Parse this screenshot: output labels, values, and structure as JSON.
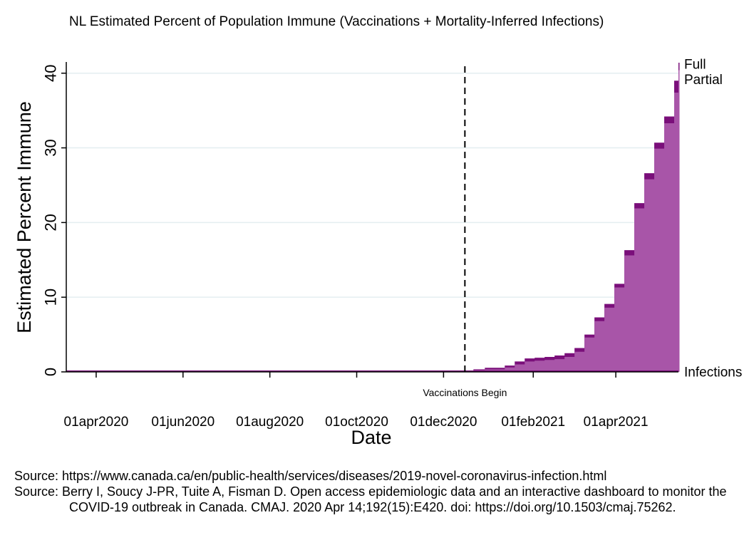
{
  "chart_data": {
    "type": "area",
    "title": "NL Estimated Percent of Population Immune (Vaccinations + Mortality-Inferred Infections)",
    "xlabel": "Date",
    "ylabel": "Estimated Percent Immune",
    "ylim": [
      0,
      41.5
    ],
    "yticks": [
      0,
      10,
      20,
      30,
      40
    ],
    "xticks": [
      {
        "label": "01apr2020",
        "day": 0
      },
      {
        "label": "01jun2020",
        "day": 61
      },
      {
        "label": "01aug2020",
        "day": 122
      },
      {
        "label": "01oct2020",
        "day": 183
      },
      {
        "label": "01dec2020",
        "day": 244
      },
      {
        "label": "01feb2021",
        "day": 307
      },
      {
        "label": "01apr2021",
        "day": 365
      }
    ],
    "xrange_days": [
      -21,
      409
    ],
    "vline": {
      "day": 259,
      "label": "Vaccinations Begin"
    },
    "series_labels": {
      "full": "Full",
      "partial": "Partial",
      "infections": "Infections"
    },
    "series": [
      {
        "name": "Infections",
        "x": [
          -21,
          259,
          409
        ],
        "values": [
          0.05,
          0.05,
          0.05
        ]
      },
      {
        "name": "Partial",
        "x": [
          259,
          265,
          273,
          287,
          294,
          301,
          308,
          315,
          322,
          329,
          336,
          343,
          350,
          357,
          364,
          371,
          378,
          385,
          392,
          399,
          406,
          409
        ],
        "values": [
          0.05,
          0.25,
          0.35,
          0.6,
          1.0,
          1.4,
          1.5,
          1.6,
          1.7,
          2.0,
          2.7,
          4.6,
          6.8,
          8.6,
          11.3,
          15.6,
          21.9,
          25.8,
          29.9,
          33.3,
          37.4,
          40.4
        ]
      },
      {
        "name": "Full",
        "x": [
          259,
          265,
          273,
          287,
          294,
          301,
          308,
          315,
          322,
          329,
          336,
          343,
          350,
          357,
          364,
          371,
          378,
          385,
          392,
          399,
          406,
          409
        ],
        "values": [
          0.05,
          0.35,
          0.55,
          0.85,
          1.4,
          1.8,
          1.9,
          2.0,
          2.2,
          2.5,
          3.2,
          5.0,
          7.3,
          9.1,
          11.8,
          16.3,
          22.6,
          26.6,
          30.7,
          34.2,
          39.0,
          41.4
        ]
      }
    ],
    "colors": {
      "partial": "#a855a8",
      "full": "#7a0f7a",
      "gridline": "#e4eef0",
      "vline": "#000000"
    }
  },
  "sources": [
    "Source: https://www.canada.ca/en/public-health/services/diseases/2019-novel-coronavirus-infection.html",
    "Source: Berry I, Soucy J-PR, Tuite A, Fisman D. Open access epidemiologic data and an interactive dashboard to monitor the COVID-19 outbreak in Canada. CMAJ. 2020 Apr 14;192(15):E420. doi: https://doi.org/10.1503/cmaj.75262."
  ]
}
